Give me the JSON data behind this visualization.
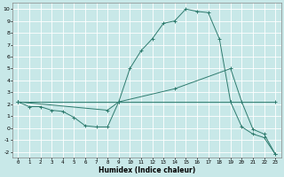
{
  "xlabel": "Humidex (Indice chaleur)",
  "bg_color": "#c8e8e8",
  "grid_color": "#ffffff",
  "line_color": "#2e7b6e",
  "xlim": [
    -0.5,
    23.5
  ],
  "ylim": [
    -2.5,
    10.5
  ],
  "xticks": [
    0,
    1,
    2,
    3,
    4,
    5,
    6,
    7,
    8,
    9,
    10,
    11,
    12,
    13,
    14,
    15,
    16,
    17,
    18,
    19,
    20,
    21,
    22,
    23
  ],
  "yticks": [
    -2,
    -1,
    0,
    1,
    2,
    3,
    4,
    5,
    6,
    7,
    8,
    9,
    10
  ],
  "curve1_x": [
    0,
    1,
    2,
    3,
    4,
    5,
    6,
    7,
    8,
    9,
    10,
    11,
    12,
    13,
    14,
    15,
    16,
    17,
    18,
    19,
    20,
    21,
    22,
    23
  ],
  "curve1_y": [
    2.2,
    1.8,
    1.8,
    1.5,
    1.4,
    0.9,
    0.2,
    0.1,
    0.1,
    2.2,
    5.0,
    6.5,
    7.5,
    8.8,
    9.0,
    10.0,
    9.8,
    9.7,
    7.5,
    2.2,
    0.1,
    -0.5,
    -0.8,
    -2.2
  ],
  "curve2_x": [
    0,
    19,
    23
  ],
  "curve2_y": [
    2.2,
    2.2,
    2.2
  ],
  "curve3_x": [
    0,
    8,
    9,
    14,
    19,
    20,
    21,
    22,
    23
  ],
  "curve3_y": [
    2.2,
    1.5,
    2.2,
    3.3,
    5.0,
    2.2,
    -0.1,
    -0.5,
    -2.2
  ]
}
